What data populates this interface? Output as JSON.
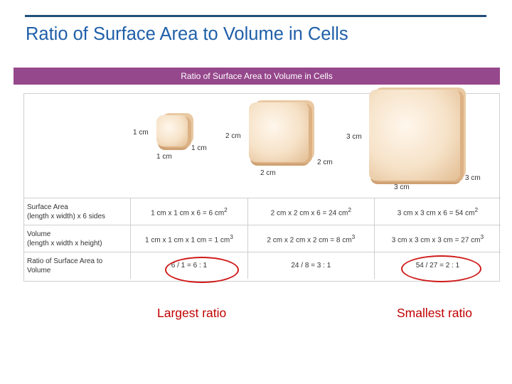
{
  "title": "Ratio of Surface Area to Volume in Cells",
  "figure": {
    "banner": "Ratio of Surface Area to Volume in Cells",
    "cubes": [
      {
        "left_label": "1 cm",
        "right_label": "2 cm",
        "depth_label": "1 cm",
        "bottom_label": "1 cm"
      },
      {
        "left_label": "",
        "right_label": "3 cm",
        "depth_label": "2 cm",
        "bottom_label": "2 cm"
      },
      {
        "left_label": "",
        "right_label": "",
        "depth_label": "3 cm",
        "bottom_label": "3 cm"
      }
    ],
    "rows": [
      {
        "header_line1": "Surface Area",
        "header_line2": "(length x width) x 6 sides",
        "values": [
          "1 cm x 1 cm x 6 = 6 cm",
          "2 cm x 2 cm x 6 = 24 cm",
          "3 cm x 3 cm x 6 = 54 cm"
        ],
        "sup": "2"
      },
      {
        "header_line1": "Volume",
        "header_line2": "(length x width x height)",
        "values": [
          "1 cm x 1 cm x 1 cm = 1 cm",
          "2 cm x 2 cm x 2 cm = 8 cm",
          "3 cm x 3 cm x 3 cm = 27 cm"
        ],
        "sup": "3"
      },
      {
        "header_line1": "Ratio of Surface Area to",
        "header_line2": "Volume",
        "values": [
          "6 / 1 = 6 : 1",
          "24 / 8 = 3 : 1",
          "54 / 27 = 2 : 1"
        ],
        "sup": ""
      }
    ]
  },
  "callouts": {
    "largest": "Largest ratio",
    "smallest": "Smallest ratio"
  },
  "colors": {
    "title": "#1f5fa8",
    "banner": "#96488c",
    "highlight": "#d01a1a",
    "callout_text": "#c00000"
  }
}
